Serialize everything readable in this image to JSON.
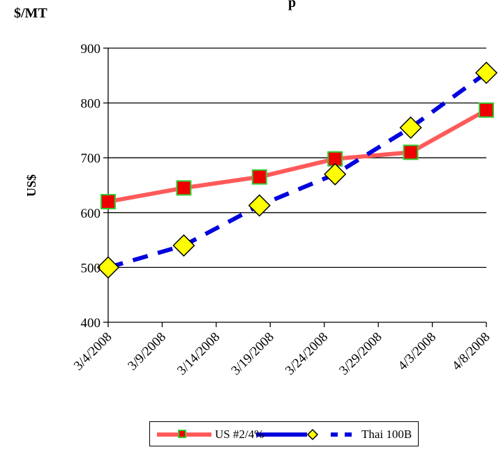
{
  "chart_data": {
    "type": "line",
    "title": "$/MT",
    "title_visible_fragment": "p",
    "xlabel": "",
    "ylabel": "US$",
    "x_tick_labels": [
      "3/4/2008",
      "3/9/2008",
      "3/14/2008",
      "3/19/2008",
      "3/24/2008",
      "3/29/2008",
      "4/3/2008",
      "4/8/2008"
    ],
    "x_range": [
      "2008-03-04",
      "2008-04-08"
    ],
    "ylim": [
      400,
      900
    ],
    "y_ticks": [
      400,
      500,
      600,
      700,
      800,
      900
    ],
    "grid": "horizontal",
    "legend_position": "bottom",
    "series": [
      {
        "name": "US #2/4%",
        "color": "#ff5a5a",
        "marker": "square",
        "marker_fill": "#ee0000",
        "marker_edge": "#33cc33",
        "line_style": "solid",
        "x": [
          "2008-03-04",
          "2008-03-11",
          "2008-03-18",
          "2008-03-25",
          "2008-04-01",
          "2008-04-08"
        ],
        "values": [
          620,
          645,
          665,
          698,
          710,
          787
        ]
      },
      {
        "name": "Thai 100B",
        "color": "#0000dd",
        "marker": "diamond",
        "marker_fill": "#ffff00",
        "marker_edge": "#000000",
        "line_style": "dashed",
        "x": [
          "2008-03-04",
          "2008-03-11",
          "2008-03-18",
          "2008-03-25",
          "2008-04-01",
          "2008-04-08"
        ],
        "values": [
          500,
          540,
          613,
          670,
          755,
          855
        ]
      }
    ]
  }
}
